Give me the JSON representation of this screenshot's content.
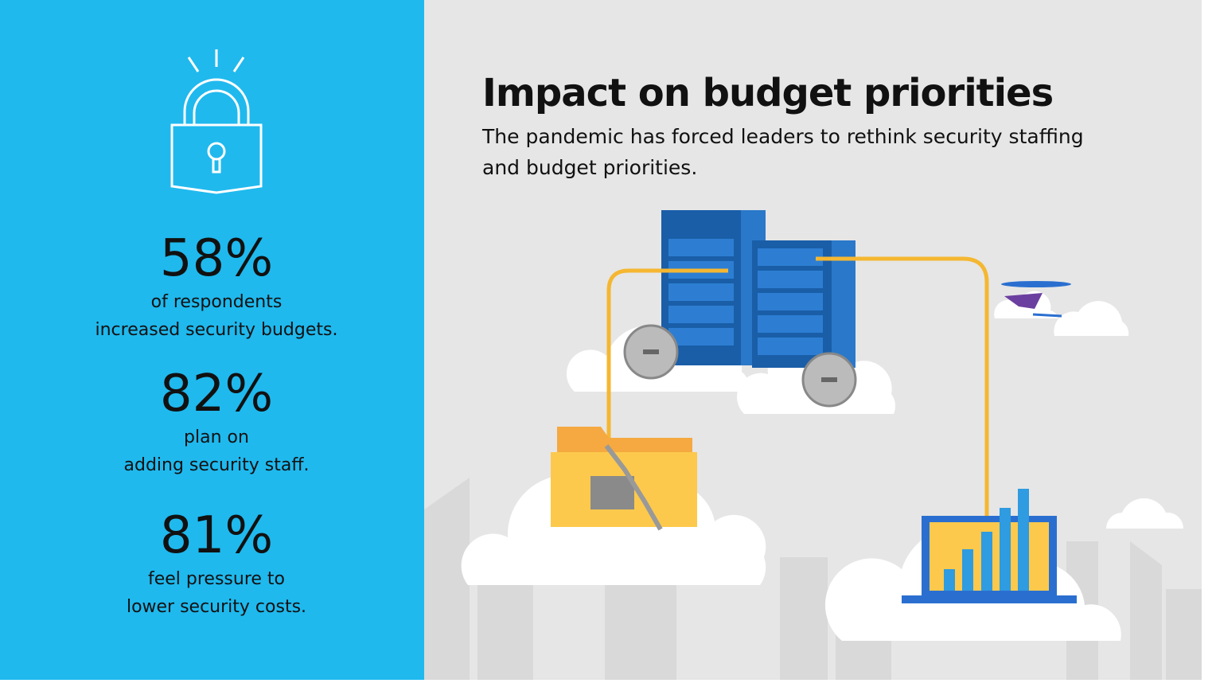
{
  "left_panel": {
    "stats": [
      {
        "figure": "58%",
        "lines": [
          "of respondents",
          "increased security budgets."
        ]
      },
      {
        "figure": "82%",
        "lines": [
          "plan on",
          "adding security staff."
        ]
      },
      {
        "figure": "81%",
        "lines": [
          "feel pressure to",
          "lower security costs."
        ]
      }
    ]
  },
  "header": {
    "title": "Impact on budget priorities",
    "subtitle_lines": [
      "The pandemic has forced leaders to rethink security staffing",
      "and budget priorities."
    ]
  }
}
